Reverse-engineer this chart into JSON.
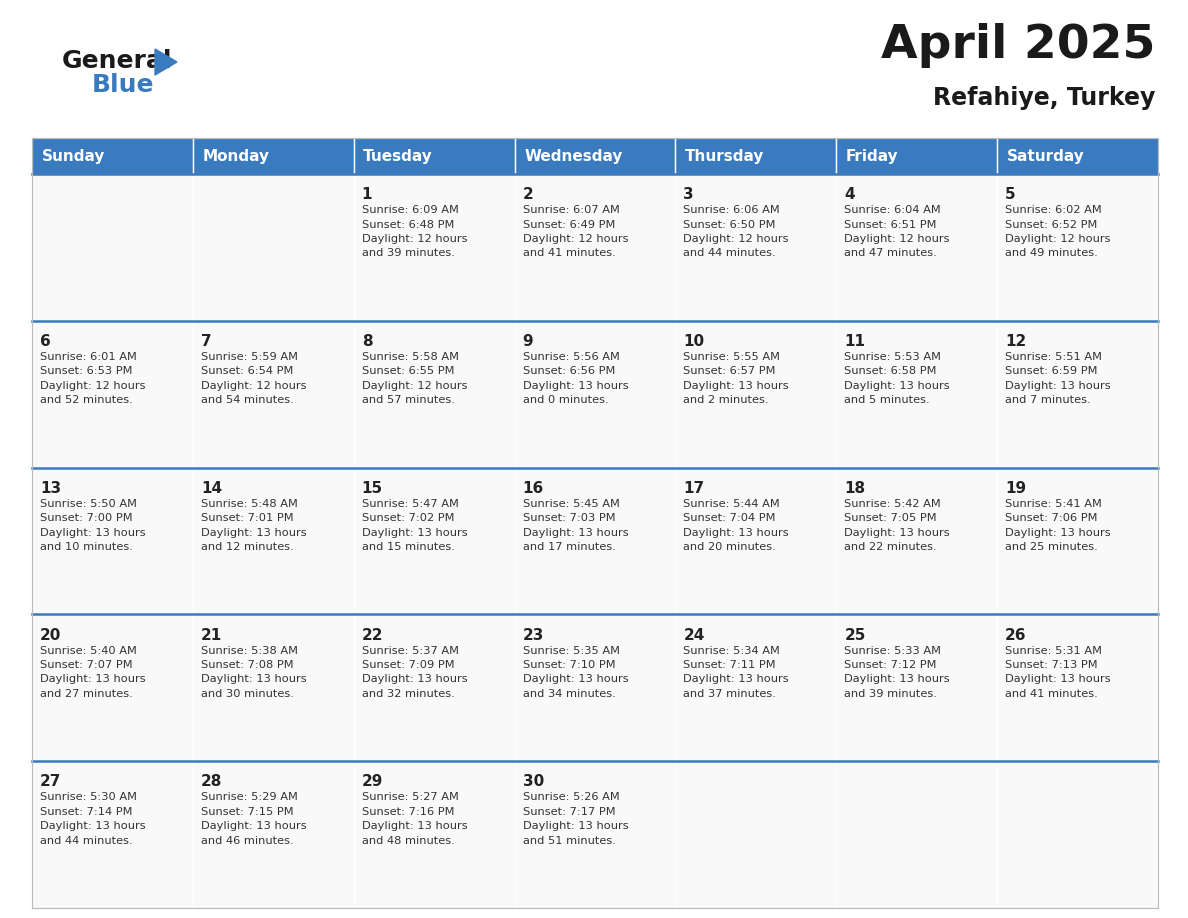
{
  "title": "April 2025",
  "subtitle": "Refahiye, Turkey",
  "header_bg_color": "#3a7bbf",
  "header_text_color": "#ffffff",
  "cell_bg_color": "#f9f9f9",
  "day_number_color": "#222222",
  "day_text_color": "#333333",
  "separator_color": "#3a7bbf",
  "border_color": "#bbbbbb",
  "days_of_week": [
    "Sunday",
    "Monday",
    "Tuesday",
    "Wednesday",
    "Thursday",
    "Friday",
    "Saturday"
  ],
  "calendar_data": [
    [
      {
        "day": null,
        "info": null
      },
      {
        "day": null,
        "info": null
      },
      {
        "day": 1,
        "info": "Sunrise: 6:09 AM\nSunset: 6:48 PM\nDaylight: 12 hours\nand 39 minutes."
      },
      {
        "day": 2,
        "info": "Sunrise: 6:07 AM\nSunset: 6:49 PM\nDaylight: 12 hours\nand 41 minutes."
      },
      {
        "day": 3,
        "info": "Sunrise: 6:06 AM\nSunset: 6:50 PM\nDaylight: 12 hours\nand 44 minutes."
      },
      {
        "day": 4,
        "info": "Sunrise: 6:04 AM\nSunset: 6:51 PM\nDaylight: 12 hours\nand 47 minutes."
      },
      {
        "day": 5,
        "info": "Sunrise: 6:02 AM\nSunset: 6:52 PM\nDaylight: 12 hours\nand 49 minutes."
      }
    ],
    [
      {
        "day": 6,
        "info": "Sunrise: 6:01 AM\nSunset: 6:53 PM\nDaylight: 12 hours\nand 52 minutes."
      },
      {
        "day": 7,
        "info": "Sunrise: 5:59 AM\nSunset: 6:54 PM\nDaylight: 12 hours\nand 54 minutes."
      },
      {
        "day": 8,
        "info": "Sunrise: 5:58 AM\nSunset: 6:55 PM\nDaylight: 12 hours\nand 57 minutes."
      },
      {
        "day": 9,
        "info": "Sunrise: 5:56 AM\nSunset: 6:56 PM\nDaylight: 13 hours\nand 0 minutes."
      },
      {
        "day": 10,
        "info": "Sunrise: 5:55 AM\nSunset: 6:57 PM\nDaylight: 13 hours\nand 2 minutes."
      },
      {
        "day": 11,
        "info": "Sunrise: 5:53 AM\nSunset: 6:58 PM\nDaylight: 13 hours\nand 5 minutes."
      },
      {
        "day": 12,
        "info": "Sunrise: 5:51 AM\nSunset: 6:59 PM\nDaylight: 13 hours\nand 7 minutes."
      }
    ],
    [
      {
        "day": 13,
        "info": "Sunrise: 5:50 AM\nSunset: 7:00 PM\nDaylight: 13 hours\nand 10 minutes."
      },
      {
        "day": 14,
        "info": "Sunrise: 5:48 AM\nSunset: 7:01 PM\nDaylight: 13 hours\nand 12 minutes."
      },
      {
        "day": 15,
        "info": "Sunrise: 5:47 AM\nSunset: 7:02 PM\nDaylight: 13 hours\nand 15 minutes."
      },
      {
        "day": 16,
        "info": "Sunrise: 5:45 AM\nSunset: 7:03 PM\nDaylight: 13 hours\nand 17 minutes."
      },
      {
        "day": 17,
        "info": "Sunrise: 5:44 AM\nSunset: 7:04 PM\nDaylight: 13 hours\nand 20 minutes."
      },
      {
        "day": 18,
        "info": "Sunrise: 5:42 AM\nSunset: 7:05 PM\nDaylight: 13 hours\nand 22 minutes."
      },
      {
        "day": 19,
        "info": "Sunrise: 5:41 AM\nSunset: 7:06 PM\nDaylight: 13 hours\nand 25 minutes."
      }
    ],
    [
      {
        "day": 20,
        "info": "Sunrise: 5:40 AM\nSunset: 7:07 PM\nDaylight: 13 hours\nand 27 minutes."
      },
      {
        "day": 21,
        "info": "Sunrise: 5:38 AM\nSunset: 7:08 PM\nDaylight: 13 hours\nand 30 minutes."
      },
      {
        "day": 22,
        "info": "Sunrise: 5:37 AM\nSunset: 7:09 PM\nDaylight: 13 hours\nand 32 minutes."
      },
      {
        "day": 23,
        "info": "Sunrise: 5:35 AM\nSunset: 7:10 PM\nDaylight: 13 hours\nand 34 minutes."
      },
      {
        "day": 24,
        "info": "Sunrise: 5:34 AM\nSunset: 7:11 PM\nDaylight: 13 hours\nand 37 minutes."
      },
      {
        "day": 25,
        "info": "Sunrise: 5:33 AM\nSunset: 7:12 PM\nDaylight: 13 hours\nand 39 minutes."
      },
      {
        "day": 26,
        "info": "Sunrise: 5:31 AM\nSunset: 7:13 PM\nDaylight: 13 hours\nand 41 minutes."
      }
    ],
    [
      {
        "day": 27,
        "info": "Sunrise: 5:30 AM\nSunset: 7:14 PM\nDaylight: 13 hours\nand 44 minutes."
      },
      {
        "day": 28,
        "info": "Sunrise: 5:29 AM\nSunset: 7:15 PM\nDaylight: 13 hours\nand 46 minutes."
      },
      {
        "day": 29,
        "info": "Sunrise: 5:27 AM\nSunset: 7:16 PM\nDaylight: 13 hours\nand 48 minutes."
      },
      {
        "day": 30,
        "info": "Sunrise: 5:26 AM\nSunset: 7:17 PM\nDaylight: 13 hours\nand 51 minutes."
      },
      {
        "day": null,
        "info": null
      },
      {
        "day": null,
        "info": null
      },
      {
        "day": null,
        "info": null
      }
    ]
  ],
  "logo_general_color": "#1a1a1a",
  "logo_blue_color": "#3a7bbf",
  "logo_triangle_color": "#3a7bbf",
  "title_fontsize": 34,
  "subtitle_fontsize": 17,
  "header_fontsize": 11,
  "day_num_fontsize": 11,
  "info_fontsize": 8.2
}
